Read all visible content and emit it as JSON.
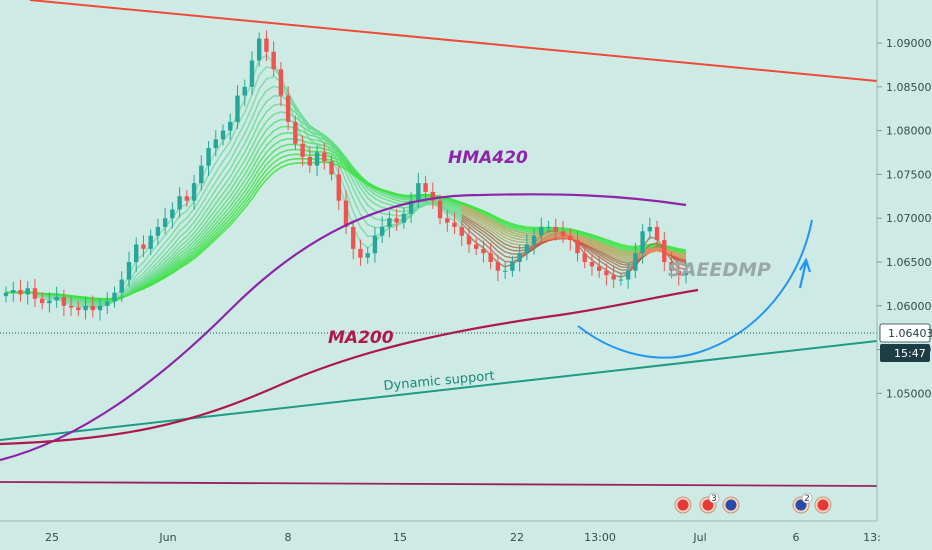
{
  "chart_data": {
    "type": "candlestick",
    "instrument": "EURUSD",
    "y_ticks": [
      "1.09000",
      "1.08500",
      "1.08000",
      "1.07500",
      "1.07000",
      "1.06500",
      "1.06000",
      "1.05500",
      "1.05000"
    ],
    "x_ticks": [
      "25",
      "Jun",
      "8",
      "15",
      "22",
      "13:00",
      "Jul",
      "6",
      "13:"
    ],
    "ylim": [
      1.0475,
      1.092
    ],
    "current_price": "1.06403",
    "countdown": "15:47",
    "annotations": {
      "hma": "HMA420",
      "ma": "MA200",
      "support": "Dynamic support",
      "watermark": "SAEEDMP"
    },
    "event_badges": [
      {
        "count": "3"
      },
      {
        "count": "2"
      }
    ],
    "colors": {
      "bull": "#26a69a",
      "bear": "#ef5350",
      "hma": "#8e24aa",
      "ma200": "#b0174a",
      "trend_top": "#ef4a36",
      "support": "#1e9a88",
      "projection": "#2196f3",
      "bottom_line": "#9a1f5e"
    },
    "closes": [
      1.0615,
      1.0618,
      1.0613,
      1.062,
      1.0608,
      1.0603,
      1.0606,
      1.061,
      1.06,
      1.0598,
      1.0595,
      1.06,
      1.0595,
      1.06,
      1.0605,
      1.0615,
      1.063,
      1.065,
      1.067,
      1.0665,
      1.068,
      1.069,
      1.07,
      1.071,
      1.0725,
      1.072,
      1.074,
      1.076,
      1.078,
      1.079,
      1.08,
      1.081,
      1.084,
      1.085,
      1.088,
      1.0905,
      1.089,
      1.087,
      1.084,
      1.081,
      1.0785,
      1.077,
      1.076,
      1.0775,
      1.0765,
      1.075,
      1.072,
      1.069,
      1.0665,
      1.0655,
      1.066,
      1.068,
      1.069,
      1.07,
      1.0695,
      1.0705,
      1.072,
      1.074,
      1.073,
      1.072,
      1.07,
      1.0695,
      1.069,
      1.068,
      1.067,
      1.0665,
      1.066,
      1.065,
      1.064,
      1.064,
      1.065,
      1.066,
      1.067,
      1.068,
      1.069,
      1.069,
      1.0685,
      1.068,
      1.0675,
      1.066,
      1.065,
      1.0645,
      1.064,
      1.0635,
      1.063,
      1.063,
      1.064,
      1.066,
      1.0685,
      1.069,
      1.0675,
      1.065,
      1.064,
      1.0635,
      1.064
    ]
  }
}
